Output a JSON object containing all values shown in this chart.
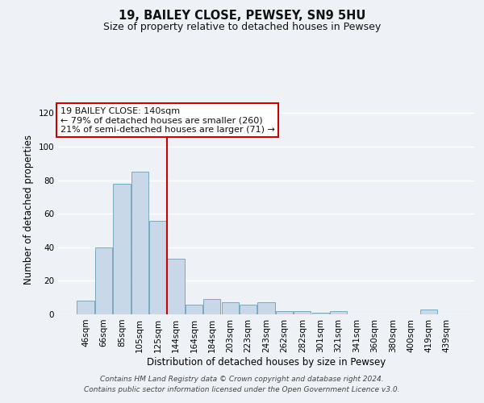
{
  "title": "19, BAILEY CLOSE, PEWSEY, SN9 5HU",
  "subtitle": "Size of property relative to detached houses in Pewsey",
  "xlabel": "Distribution of detached houses by size in Pewsey",
  "ylabel": "Number of detached properties",
  "bar_color": "#c8d8e8",
  "bar_edge_color": "#7aaac0",
  "categories": [
    "46sqm",
    "66sqm",
    "85sqm",
    "105sqm",
    "125sqm",
    "144sqm",
    "164sqm",
    "184sqm",
    "203sqm",
    "223sqm",
    "243sqm",
    "262sqm",
    "282sqm",
    "301sqm",
    "321sqm",
    "341sqm",
    "360sqm",
    "380sqm",
    "400sqm",
    "419sqm",
    "439sqm"
  ],
  "values": [
    8,
    40,
    78,
    85,
    56,
    33,
    6,
    9,
    7,
    6,
    7,
    2,
    2,
    1,
    2,
    0,
    0,
    0,
    0,
    3,
    0
  ],
  "ylim": [
    0,
    125
  ],
  "yticks": [
    0,
    20,
    40,
    60,
    80,
    100,
    120
  ],
  "vline_idx": 5,
  "vline_color": "#cc0000",
  "annotation_text": "19 BAILEY CLOSE: 140sqm\n← 79% of detached houses are smaller (260)\n21% of semi-detached houses are larger (71) →",
  "annotation_box_color": "#ffffff",
  "annotation_box_edge": "#cc0000",
  "footer": "Contains HM Land Registry data © Crown copyright and database right 2024.\nContains public sector information licensed under the Open Government Licence v3.0.",
  "background_color": "#eef2f7",
  "grid_color": "#ffffff"
}
